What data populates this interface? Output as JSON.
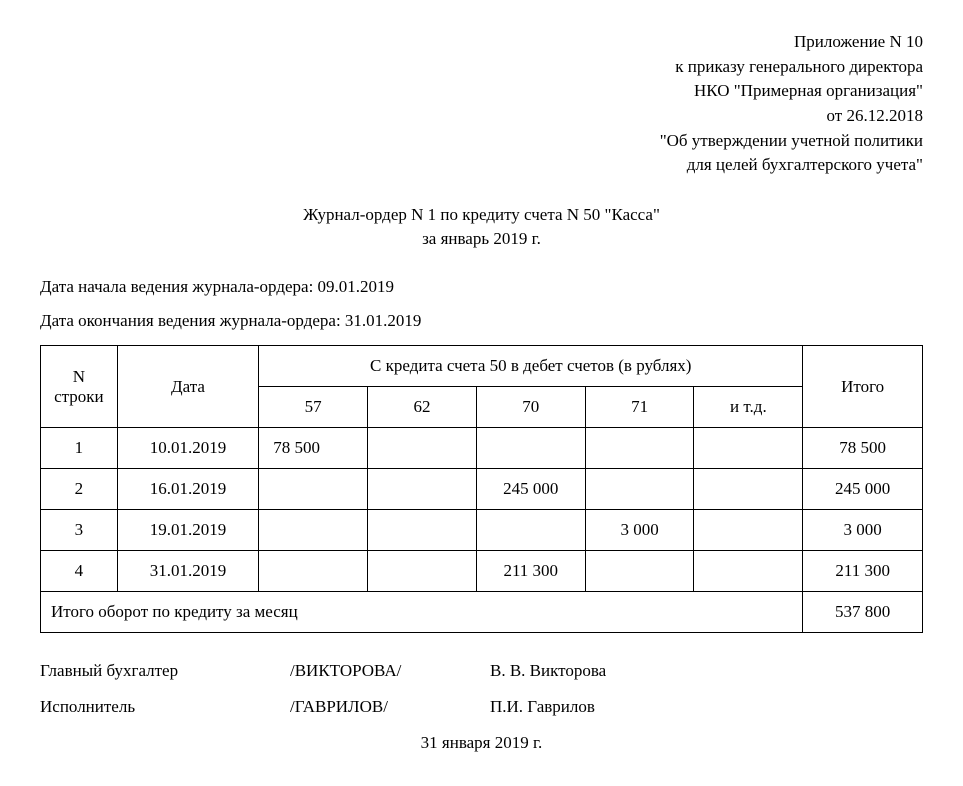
{
  "header": {
    "line1": "Приложение N 10",
    "line2": "к приказу генерального директора",
    "line3": "НКО \"Примерная организация\"",
    "line4": "от 26.12.2018",
    "line5": "\"Об утверждении учетной политики",
    "line6": "для целей бухгалтерского учета\""
  },
  "title": {
    "line1": "Журнал-ордер N 1 по кредиту счета N 50 \"Касса\"",
    "line2": "за январь 2019 г."
  },
  "meta": {
    "start": "Дата начала ведения журнала-ордера: 09.01.2019",
    "end": "Дата окончания ведения журнала-ордера: 31.01.2019"
  },
  "table": {
    "head": {
      "col_n": "N строки",
      "col_date": "Дата",
      "col_credit_span": "С кредита счета 50 в дебет счетов (в рублях)",
      "col_total": "Итого",
      "sub": {
        "c57": "57",
        "c62": "62",
        "c70": "70",
        "c71": "71",
        "c_etc": "и т.д."
      }
    },
    "rows": [
      {
        "n": "1",
        "date": "10.01.2019",
        "c57": "78 500",
        "c62": "",
        "c70": "",
        "c71": "",
        "c_etc": "",
        "total": "78 500"
      },
      {
        "n": "2",
        "date": "16.01.2019",
        "c57": "",
        "c62": "",
        "c70": "245 000",
        "c71": "",
        "c_etc": "",
        "total": "245 000"
      },
      {
        "n": "3",
        "date": "19.01.2019",
        "c57": "",
        "c62": "",
        "c70": "",
        "c71": "3 000",
        "c_etc": "",
        "total": "3 000"
      },
      {
        "n": "4",
        "date": "31.01.2019",
        "c57": "",
        "c62": "",
        "c70": "211 300",
        "c71": "",
        "c_etc": "",
        "total": "211 300"
      }
    ],
    "footer": {
      "label": "Итого оборот по кредиту за месяц",
      "total": "537 800"
    },
    "col_widths": {
      "n": "70px",
      "date": "130px",
      "acct": "100px",
      "total": "110px"
    }
  },
  "signatures": {
    "s1": {
      "role": "Главный бухгалтер",
      "slash": "/ВИКТОРОВА/",
      "name": "В. В. Викторова"
    },
    "s2": {
      "role": "Исполнитель",
      "slash": "/ГАВРИЛОВ/",
      "name": "П.И. Гаврилов"
    }
  },
  "footer_date": "31 января 2019 г."
}
